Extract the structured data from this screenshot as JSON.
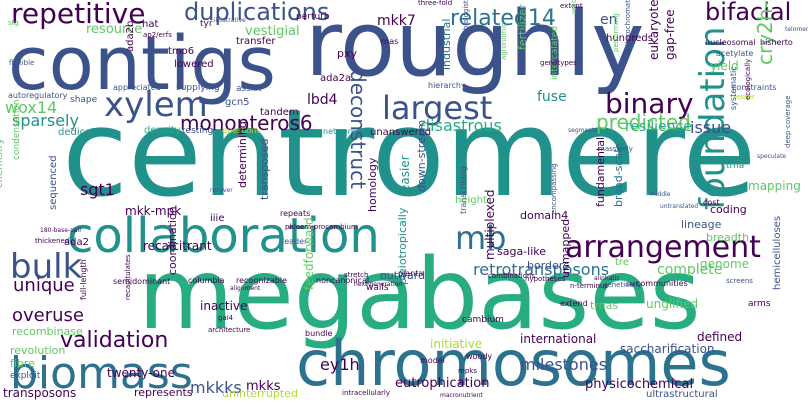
{
  "title": "",
  "colors": {
    "dark_purple": "#440154",
    "indigo": "#3b528b",
    "blue": "#2c728e",
    "teal": "#21918c",
    "green": "#27ad81",
    "lime": "#5ec962",
    "yellow_green": "#addc30",
    "yellow": "#fde725"
  },
  "words": {
    "centromere": "centromere",
    "megabases": "megabases",
    "roughly": "roughly",
    "contigs": "contigs",
    "chromosomes": "chromosomes",
    "collaboration": "collaboration",
    "arrangement": "arrangement",
    "biomass": "biomass",
    "foundation": "foundation",
    "xylem": "xylem",
    "largest": "largest",
    "repetitive": "repetitive",
    "duplications": "duplications",
    "related14": "related14",
    "bifacial": "bifacial",
    "binary": "binary",
    "bulk": "bulk",
    "mb": "mb",
    "validation": "validation",
    "monopteros6": "monopteros6",
    "deconstruct": "deconstruct",
    "predicted": "predicted",
    "cry2h_seg": "cry2h-seg",
    "unique": "unique",
    "overuse": "overuse",
    "milestones": "milestones",
    "retrotransposons": "retrotransposons",
    "mkkks": "mkkks",
    "ey1h": "ey1h",
    "sgt1": "sgt1",
    "wox14": "wox14",
    "sparsely": "sparsely",
    "issue": "issue",
    "disastrous": "disastrous",
    "mkk7": "mkk7",
    "en": "en",
    "resource": "resource",
    "vestigial": "vestigial",
    "complete": "complete",
    "fuse": "fuse",
    "mkk_mpk": "mkk-mpk",
    "lbd4": "lbd4",
    "resilience": "resilience",
    "eutrophication": "eutrophication",
    "mkks": "mkks",
    "physicochemical": "physicochemical",
    "unglified": "unglified",
    "recalcitrant": "recalcitrant",
    "twenty_one": "twenty-one",
    "transposons": "transposons",
    "represents": "represents",
    "uninterrupted": "uninterrupted",
    "international": "international",
    "defined": "defined",
    "saccharification": "saccharification",
    "ultrastructural": "ultrastructural",
    "initiative": "initiative",
    "hemicelluloses": "hemicelluloses",
    "recombinase": "recombinase",
    "revolution": "revolution",
    "fibre": "fibre",
    "exploit": "exploit",
    "inactive": "inactive",
    "coordination": "coordination",
    "feedforward": "feedforward",
    "multiplexed": "multiplexed",
    "pleiotropically": "pleiotropically",
    "trnas": "trnas",
    "unmapped": "unmapped",
    "genome": "genome",
    "saga_like": "saga-like",
    "borders": "borders",
    "outward": "outward",
    "dedicates": "dedicates",
    "density": "density",
    "testing": "testing",
    "questions": "questions",
    "unanswered": "unanswered",
    "industrial": "industrial",
    "fertilizer": "fertilizer",
    "eukaryotes": "eukaryotes",
    "gap_free": "gap-free",
    "yield": "yield",
    "hundreds": "hundreds",
    "nucleosomal": "nucleosomal",
    "hisherto": "hisherto",
    "acetylate": "acetylate",
    "mapping": "mapping",
    "breadth": "breadth",
    "lineage": "lineage",
    "coding": "coding",
    "trna": "trna",
    "cost": "cost",
    "domain4": "domain4",
    "fundamental": "fundamental",
    "broad_scale": "broad-scale",
    "homology": "homology",
    "down_stream": "down-stream",
    "easier": "easier",
    "determining": "determining",
    "transposed": "transposed",
    "iiie": "iiie",
    "ada2": "ada2",
    "ada2a": "ada2a",
    "ada2b": "ada2b",
    "gcn5": "gcn5",
    "tmo6": "tmo6",
    "tandem": "tandem",
    "sequenced": "sequenced",
    "chemistry": "chemistry",
    "condensation": "condensation",
    "pxy": "pxy",
    "rnas": "rnas",
    "hat": "hat",
    "lowered": "lowered",
    "transfer": "transfer",
    "perturb": "perturb",
    "supplying": "supplying",
    "assist": "assist",
    "shape": "shape",
    "appreciated": "appreciated",
    "autoregulatory": "autoregulatory",
    "flexible": "flexible",
    "ap2_erfs": "ap2/erfs",
    "tyr": "tyr",
    "illustrative": "illustrative",
    "three_fold": "three-fold",
    "extent": "extent",
    "biologists": "biologists",
    "hierarchy": "hierarchy",
    "intercalated": "intercalated",
    "lesser": "lesser",
    "constraints": "constraints",
    "systematic": "systematic",
    "ecologically": "ecologically",
    "speculate": "speculate",
    "deep_coverage": "deep-coverage",
    "telomeres": "telomeres",
    "massively": "massively",
    "genetically": "genetically",
    "transcribing": "transcribing",
    "encompassing": "encompassing",
    "height": "height",
    "middle": "middle",
    "untranslated": "untranslated",
    "cambium": "cambium",
    "woody": "woody",
    "extend": "extend",
    "arms": "arms",
    "screens": "screens",
    "communities": "communities",
    "ser": "ser",
    "aliphatic": "aliphatic",
    "hypotheses": "hypotheses",
    "n_terminus": "n-terminus",
    "walls": "walls",
    "planta": "planta",
    "noncanonical": "noncanonical",
    "recognizable": "recognizable",
    "columbia": "columbia",
    "semidominant": "semidominant",
    "repeats": "repeats",
    "phloem_procambium": "phloem-procambium",
    "leader": "leader",
    "recover": "recover",
    "full_length": "full-length",
    "thickened": "thickened",
    "recapitulates": "recapitulates",
    "architecture": "architecture",
    "gai4": "gai4",
    "stretch": "stretch",
    "bundle": "bundle",
    "model": "model",
    "mpks": "mpks",
    "intracellularly": "intracellularly",
    "macronutrient": "macronutrient",
    "next_generation": "next-generation",
    "network": "network",
    "tre": "tre",
    "combinations": "combinations",
    "reconstitution": "reconstitution",
    "agronomic": "agronomic",
    "segments": "segments",
    "performing": "performing",
    "heterochromatic": "heterochromatic",
    "genotypes": "genotypes",
    "alignment": "alignment",
    "180_base_pair": "180-base-pair",
    "stg": "stg"
  }
}
